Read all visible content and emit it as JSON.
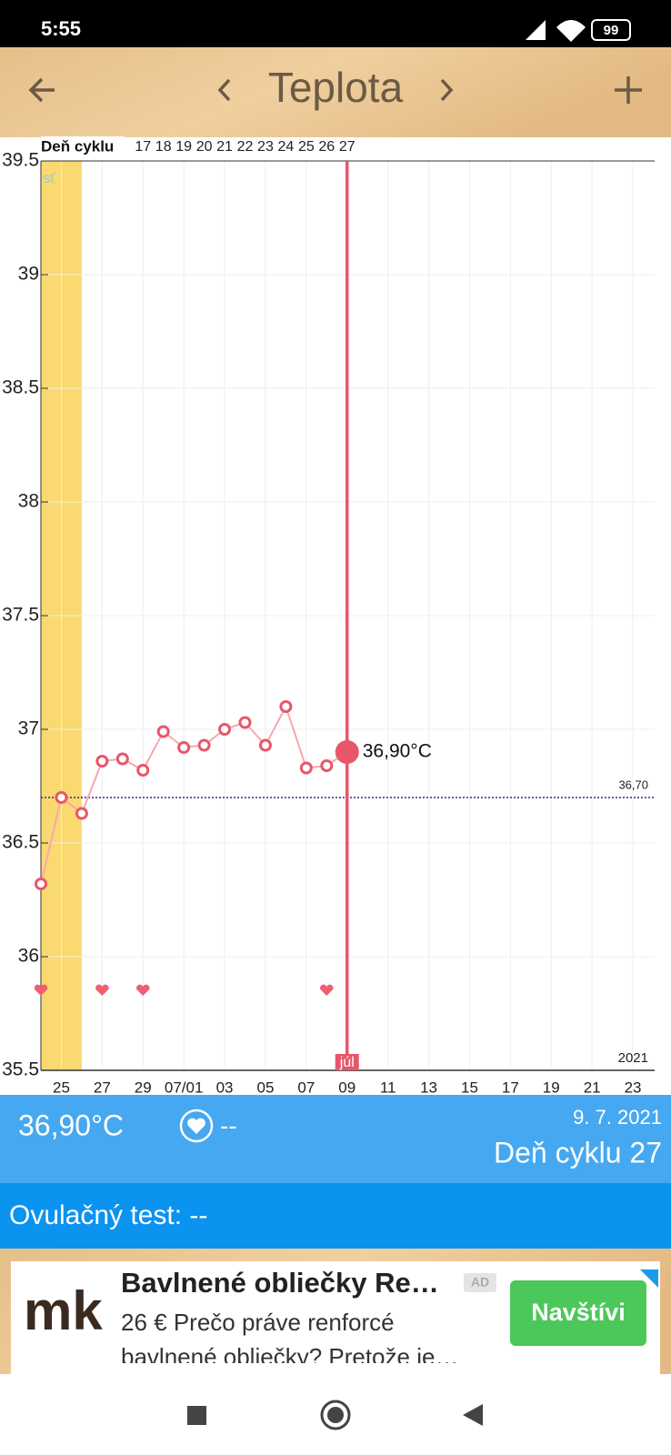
{
  "status_bar": {
    "time": "5:55",
    "battery": "99"
  },
  "header": {
    "title": "Teplota"
  },
  "chart_data": {
    "type": "line",
    "cycle_day_title": "Deň cyklu",
    "categories": [
      null,
      "25",
      null,
      "27",
      null,
      "29",
      null,
      "07/01",
      null,
      "03",
      null,
      "05",
      null,
      "07",
      null,
      "09",
      null,
      "11",
      null,
      "13",
      null,
      "15",
      null,
      "17",
      null,
      "19",
      null,
      "21",
      null,
      "23",
      null
    ],
    "cycle_days": [
      null,
      null,
      null,
      null,
      null,
      17,
      18,
      19,
      20,
      21,
      22,
      23,
      24,
      25,
      26,
      27,
      null,
      null,
      null,
      null,
      null,
      null,
      null,
      null,
      null,
      null,
      null,
      null,
      null,
      null,
      null
    ],
    "values": [
      36.32,
      36.7,
      36.63,
      36.86,
      36.87,
      36.82,
      36.99,
      36.92,
      36.93,
      37.0,
      37.03,
      36.93,
      37.1,
      36.83,
      36.84,
      36.9,
      null,
      null,
      null,
      null,
      null,
      null,
      null,
      null,
      null,
      null,
      null,
      null,
      null,
      null,
      null
    ],
    "value_labels": [
      null,
      null,
      null,
      null,
      null,
      null,
      null,
      null,
      null,
      null,
      null,
      null,
      null,
      null,
      null,
      "36,90°C",
      null,
      null,
      null,
      null,
      null,
      null,
      null,
      null,
      null,
      null,
      null,
      null,
      null,
      null,
      null
    ],
    "color": "#e8566a",
    "ylim": [
      35.5,
      39.5
    ],
    "yticks": [
      35.5,
      36,
      36.5,
      37,
      37.5,
      38,
      38.5,
      39,
      39.5
    ],
    "grid": true,
    "reference_line": {
      "value": 36.7,
      "label": "36,70"
    },
    "fertile_label": "sť",
    "month_label": "júl",
    "year_label": "2021"
  },
  "summary": {
    "temperature": "36,90°C",
    "intercourse": "--",
    "date": "9. 7. 2021",
    "cycle_day": "Deň cyklu 27"
  },
  "ovulation": "Ovulačný test: --",
  "ad": {
    "logo": "mk",
    "title": "Bavlnené obliečky Re…",
    "badge": "AD",
    "line1": "26 € Prečo práve renforcé",
    "line2": "bavlnené obliečky? Pretože je…",
    "button": "Navštívi"
  }
}
